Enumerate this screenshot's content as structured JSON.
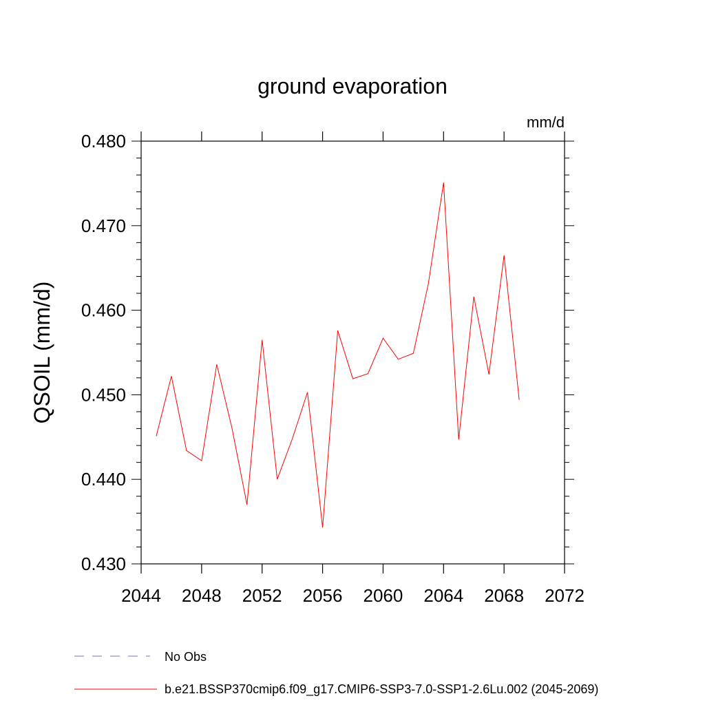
{
  "chart_data": {
    "type": "line",
    "title": "ground evaporation",
    "units_label": "mm/d",
    "ylabel": "QSOIL  (mm/d)",
    "xlabel": "",
    "xlim": [
      2044,
      2072
    ],
    "ylim": [
      0.43,
      0.48
    ],
    "x_ticks": [
      "2044",
      "2048",
      "2052",
      "2056",
      "2060",
      "2064",
      "2068",
      "2072"
    ],
    "y_ticks": [
      "0.430",
      "0.440",
      "0.450",
      "0.460",
      "0.470",
      "0.480"
    ],
    "grid": false,
    "legend_position": "bottom",
    "series": [
      {
        "name": "b.e21.BSSP370cmip6.f09_g17.CMIP6-SSP3-7.0-SSP1-2.6Lu.002 (2045-2069)",
        "color": "#ff0000",
        "style": "solid",
        "x": [
          2045,
          2046,
          2047,
          2048,
          2049,
          2050,
          2051,
          2052,
          2053,
          2054,
          2055,
          2056,
          2057,
          2058,
          2059,
          2060,
          2061,
          2062,
          2063,
          2064,
          2065,
          2066,
          2067,
          2068,
          2069
        ],
        "y": [
          0.4451,
          0.4522,
          0.4434,
          0.4422,
          0.4536,
          0.4461,
          0.437,
          0.4565,
          0.44,
          0.4448,
          0.4503,
          0.4343,
          0.4576,
          0.4519,
          0.4525,
          0.4567,
          0.4542,
          0.4549,
          0.4632,
          0.4751,
          0.4447,
          0.4616,
          0.4524,
          0.4665,
          0.4494
        ]
      },
      {
        "name": "No Obs",
        "color": "#7b6fb0",
        "style": "dashed",
        "x": [],
        "y": []
      }
    ]
  }
}
